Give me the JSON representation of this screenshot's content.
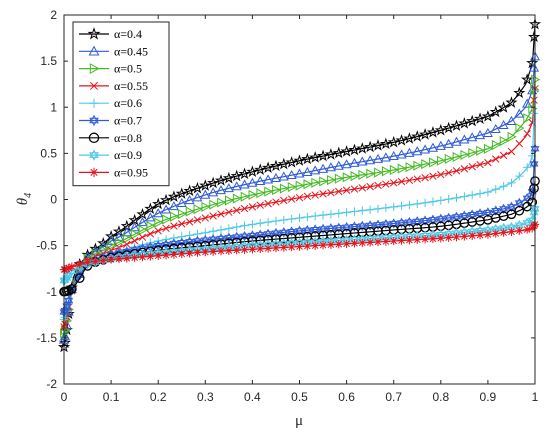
{
  "chart_data": {
    "type": "line",
    "xlabel": "μ",
    "ylabel_main": "θ",
    "ylabel_sub": "4",
    "xlim": [
      0,
      1
    ],
    "ylim": [
      -2,
      2
    ],
    "xticks": [
      0,
      0.1,
      0.2,
      0.3,
      0.4,
      0.5,
      0.6,
      0.7,
      0.8,
      0.9,
      1
    ],
    "xtick_labels": [
      "0",
      "0.1",
      "0.2",
      "0.3",
      "0.4",
      "0.5",
      "0.6",
      "0.7",
      "0.8",
      "0.9",
      "1"
    ],
    "yticks": [
      -2,
      -1.5,
      -1,
      -0.5,
      0,
      0.5,
      1,
      1.5,
      2
    ],
    "ytick_labels": [
      "-2",
      "-1.5",
      "-1",
      "-0.5",
      "0",
      "0.5",
      "1",
      "1.5",
      "2"
    ],
    "grid": false,
    "legend_position": "top-left",
    "x": [
      0,
      0.02,
      0.05,
      0.1,
      0.2,
      0.3,
      0.4,
      0.5,
      0.6,
      0.7,
      0.8,
      0.9,
      0.95,
      0.98,
      0.995,
      1
    ],
    "series": [
      {
        "name": "α=0.4",
        "color": "#000000",
        "marker": "pentagram",
        "values": [
          -1.6,
          -0.85,
          -0.6,
          -0.4,
          -0.05,
          0.15,
          0.3,
          0.42,
          0.52,
          0.62,
          0.75,
          0.9,
          1.05,
          1.25,
          1.5,
          1.9
        ]
      },
      {
        "name": "α=0.45",
        "color": "#2f5bd8",
        "marker": "triangle-up",
        "values": [
          -1.52,
          -0.88,
          -0.62,
          -0.45,
          -0.15,
          0.05,
          0.18,
          0.28,
          0.38,
          0.47,
          0.58,
          0.72,
          0.85,
          1.0,
          1.2,
          1.55
        ]
      },
      {
        "name": "α=0.5",
        "color": "#44bb22",
        "marker": "triangle-right",
        "values": [
          -1.45,
          -0.9,
          -0.64,
          -0.5,
          -0.25,
          -0.08,
          0.05,
          0.15,
          0.24,
          0.32,
          0.42,
          0.55,
          0.68,
          0.85,
          1.0,
          1.3
        ]
      },
      {
        "name": "α=0.55",
        "color": "#e8141c",
        "marker": "x",
        "values": [
          -1.38,
          -0.92,
          -0.66,
          -0.55,
          -0.34,
          -0.2,
          -0.08,
          0.02,
          0.1,
          0.18,
          0.27,
          0.4,
          0.52,
          0.68,
          0.85,
          1.2
        ]
      },
      {
        "name": "α=0.6",
        "color": "#4cc9e8",
        "marker": "plus",
        "values": [
          -1.3,
          -0.93,
          -0.68,
          -0.58,
          -0.45,
          -0.36,
          -0.27,
          -0.2,
          -0.14,
          -0.08,
          -0.01,
          0.08,
          0.18,
          0.32,
          0.5,
          1.18
        ]
      },
      {
        "name": "α=0.7",
        "color": "#2f5bd8",
        "marker": "hexagram",
        "values": [
          -1.22,
          -0.94,
          -0.7,
          -0.6,
          -0.5,
          -0.44,
          -0.39,
          -0.34,
          -0.3,
          -0.26,
          -0.21,
          -0.14,
          -0.08,
          0.0,
          0.1,
          0.55
        ]
      },
      {
        "name": "α=0.8",
        "color": "#000000",
        "marker": "circle",
        "values": [
          -1.0,
          -0.95,
          -0.72,
          -0.63,
          -0.55,
          -0.5,
          -0.45,
          -0.41,
          -0.37,
          -0.33,
          -0.29,
          -0.22,
          -0.16,
          -0.09,
          -0.02,
          0.2
        ]
      },
      {
        "name": "α=0.9",
        "color": "#4cc9e8",
        "marker": "hexagram",
        "values": [
          -0.88,
          -0.76,
          -0.7,
          -0.64,
          -0.58,
          -0.54,
          -0.5,
          -0.47,
          -0.44,
          -0.41,
          -0.38,
          -0.33,
          -0.3,
          -0.26,
          -0.22,
          -0.1
        ]
      },
      {
        "name": "α=0.95",
        "color": "#e8141c",
        "marker": "asterisk",
        "values": [
          -0.76,
          -0.72,
          -0.68,
          -0.65,
          -0.61,
          -0.57,
          -0.54,
          -0.51,
          -0.48,
          -0.45,
          -0.42,
          -0.38,
          -0.35,
          -0.33,
          -0.31,
          -0.27
        ]
      }
    ]
  }
}
